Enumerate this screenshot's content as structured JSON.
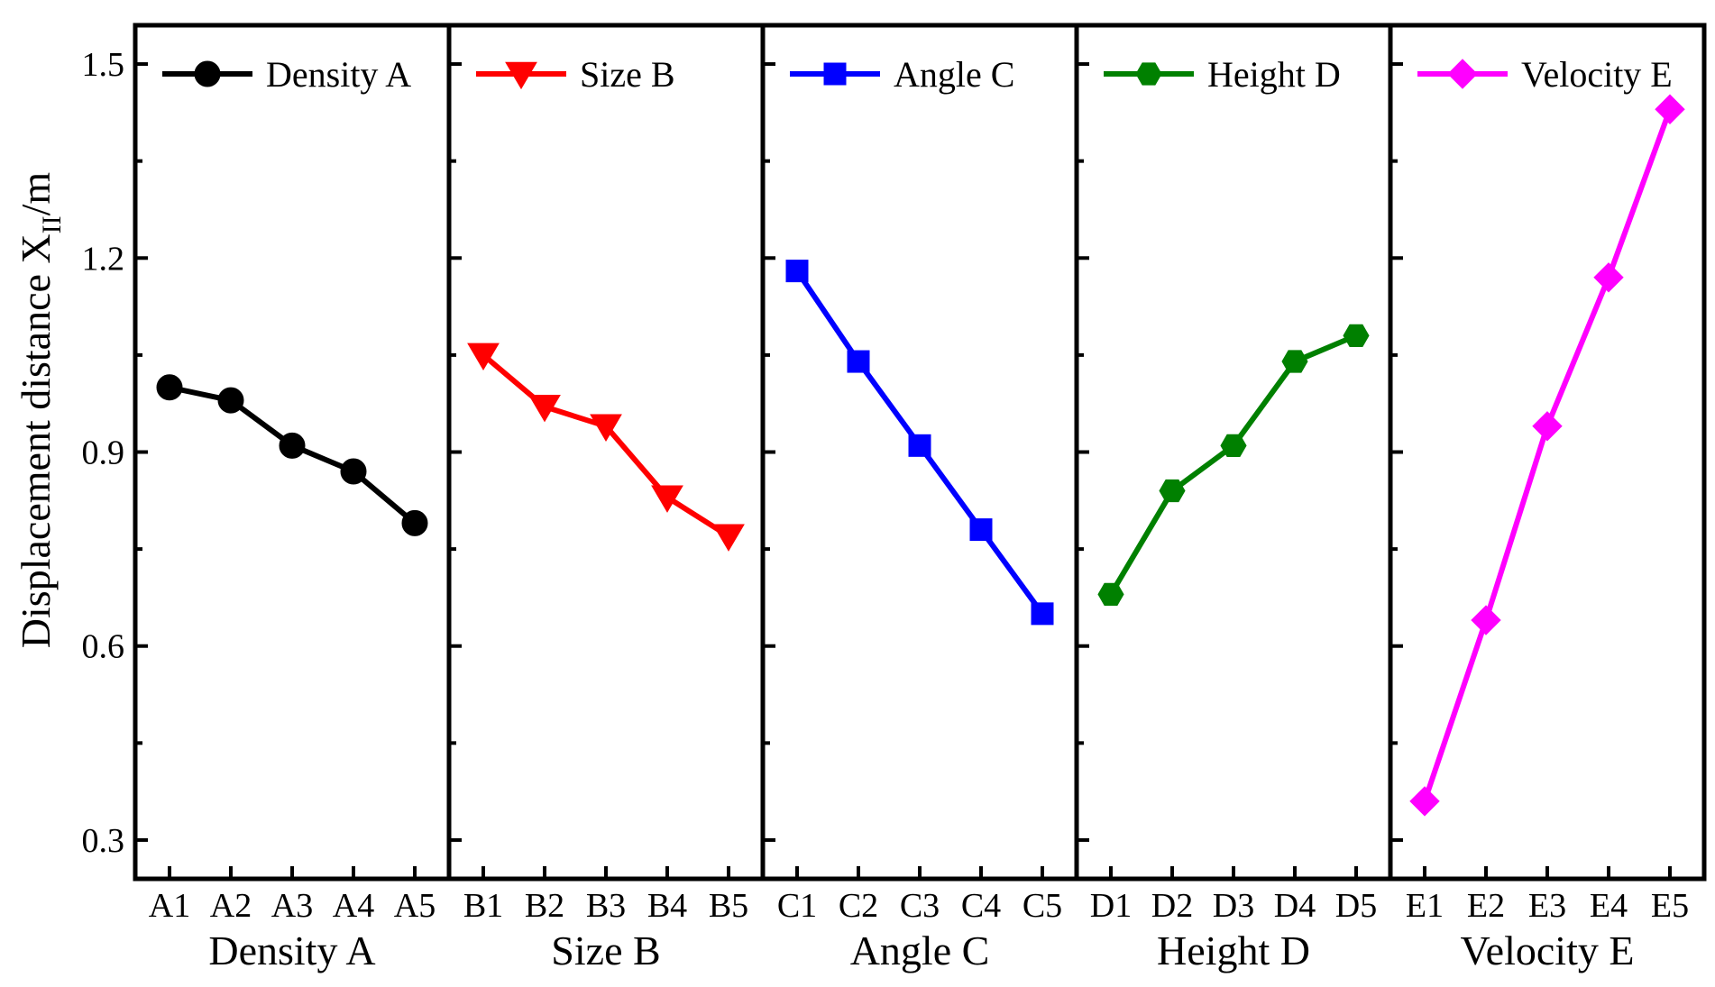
{
  "chart_data": {
    "type": "line",
    "ylabel_main": "Displacement distance X",
    "ylabel_sub": "II",
    "ylabel_unit": "/m",
    "ylim": [
      0.24,
      1.56
    ],
    "yticks": [
      0.3,
      0.6,
      0.9,
      1.2,
      1.5
    ],
    "ytick_labels": [
      "0.3",
      "0.6",
      "0.9",
      "1.2",
      "1.5"
    ],
    "legend_position": "top-center of each panel",
    "grid": false,
    "panels": [
      {
        "xlabel": "Density A",
        "categories": [
          "A1",
          "A2",
          "A3",
          "A4",
          "A5"
        ],
        "series": [
          {
            "name": "Density A",
            "values": [
              1.0,
              0.98,
              0.91,
              0.87,
              0.79
            ],
            "color": "#000000",
            "marker": "circle"
          }
        ]
      },
      {
        "xlabel": "Size B",
        "categories": [
          "B1",
          "B2",
          "B3",
          "B4",
          "B5"
        ],
        "series": [
          {
            "name": "Size B",
            "values": [
              1.05,
              0.97,
              0.94,
              0.83,
              0.77
            ],
            "color": "#ff0000",
            "marker": "triangle-down"
          }
        ]
      },
      {
        "xlabel": "Angle C",
        "categories": [
          "C1",
          "C2",
          "C3",
          "C4",
          "C5"
        ],
        "series": [
          {
            "name": "Angle C",
            "values": [
              1.18,
              1.04,
              0.91,
              0.78,
              0.65
            ],
            "color": "#0000ff",
            "marker": "square"
          }
        ]
      },
      {
        "xlabel": "Height D",
        "categories": [
          "D1",
          "D2",
          "D3",
          "D4",
          "D5"
        ],
        "series": [
          {
            "name": "Height D",
            "values": [
              0.68,
              0.84,
              0.91,
              1.04,
              1.08
            ],
            "color": "#008000",
            "marker": "hexagon"
          }
        ]
      },
      {
        "xlabel": "Velocity E",
        "categories": [
          "E1",
          "E2",
          "E3",
          "E4",
          "E5"
        ],
        "series": [
          {
            "name": "Velocity E",
            "values": [
              0.36,
              0.64,
              0.94,
              1.17,
              1.43
            ],
            "color": "#ff00ff",
            "marker": "diamond"
          }
        ]
      }
    ]
  }
}
